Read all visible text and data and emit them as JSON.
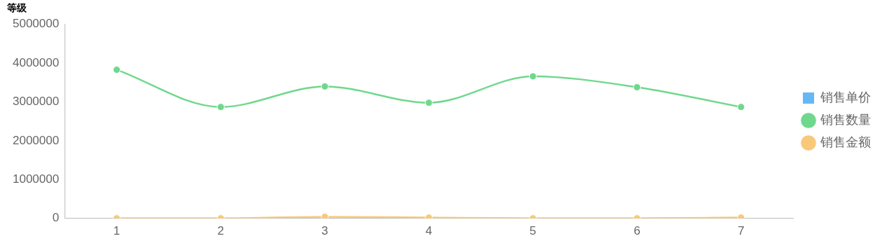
{
  "chart_data": {
    "type": "line",
    "title": "等级",
    "categories": [
      "1",
      "2",
      "3",
      "4",
      "5",
      "6",
      "7"
    ],
    "series": [
      {
        "name": "销售单价",
        "type": "bar",
        "color": "#66b8f5",
        "values": [
          null,
          null,
          null,
          null,
          null,
          null,
          null
        ]
      },
      {
        "name": "销售数量",
        "color": "#70d88c",
        "values": [
          3830000,
          2870000,
          3400000,
          2980000,
          3660000,
          3380000,
          2870000
        ]
      },
      {
        "name": "销售金额",
        "color": "#f9c97a",
        "values": [
          0,
          0,
          40000,
          20000,
          0,
          0,
          20000
        ]
      }
    ],
    "ylim": [
      0,
      5000000
    ],
    "yticks": [
      0,
      1000000,
      2000000,
      3000000,
      4000000,
      5000000
    ],
    "grid": false,
    "legend": "right",
    "marker": "circle"
  }
}
